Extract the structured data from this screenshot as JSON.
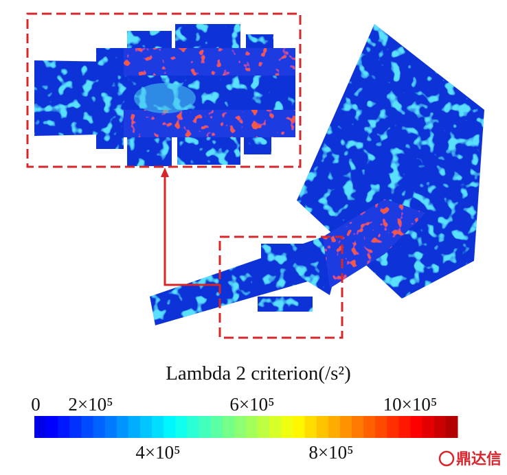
{
  "colorbar": {
    "title": "Lambda 2 criterion(/s²)",
    "top_labels": [
      "0",
      "2×10⁵",
      "6×10⁵",
      "10×10⁵"
    ],
    "bottom_labels": [
      "4×10⁵",
      "8×10⁵"
    ]
  },
  "watermark": "鼎达信"
}
